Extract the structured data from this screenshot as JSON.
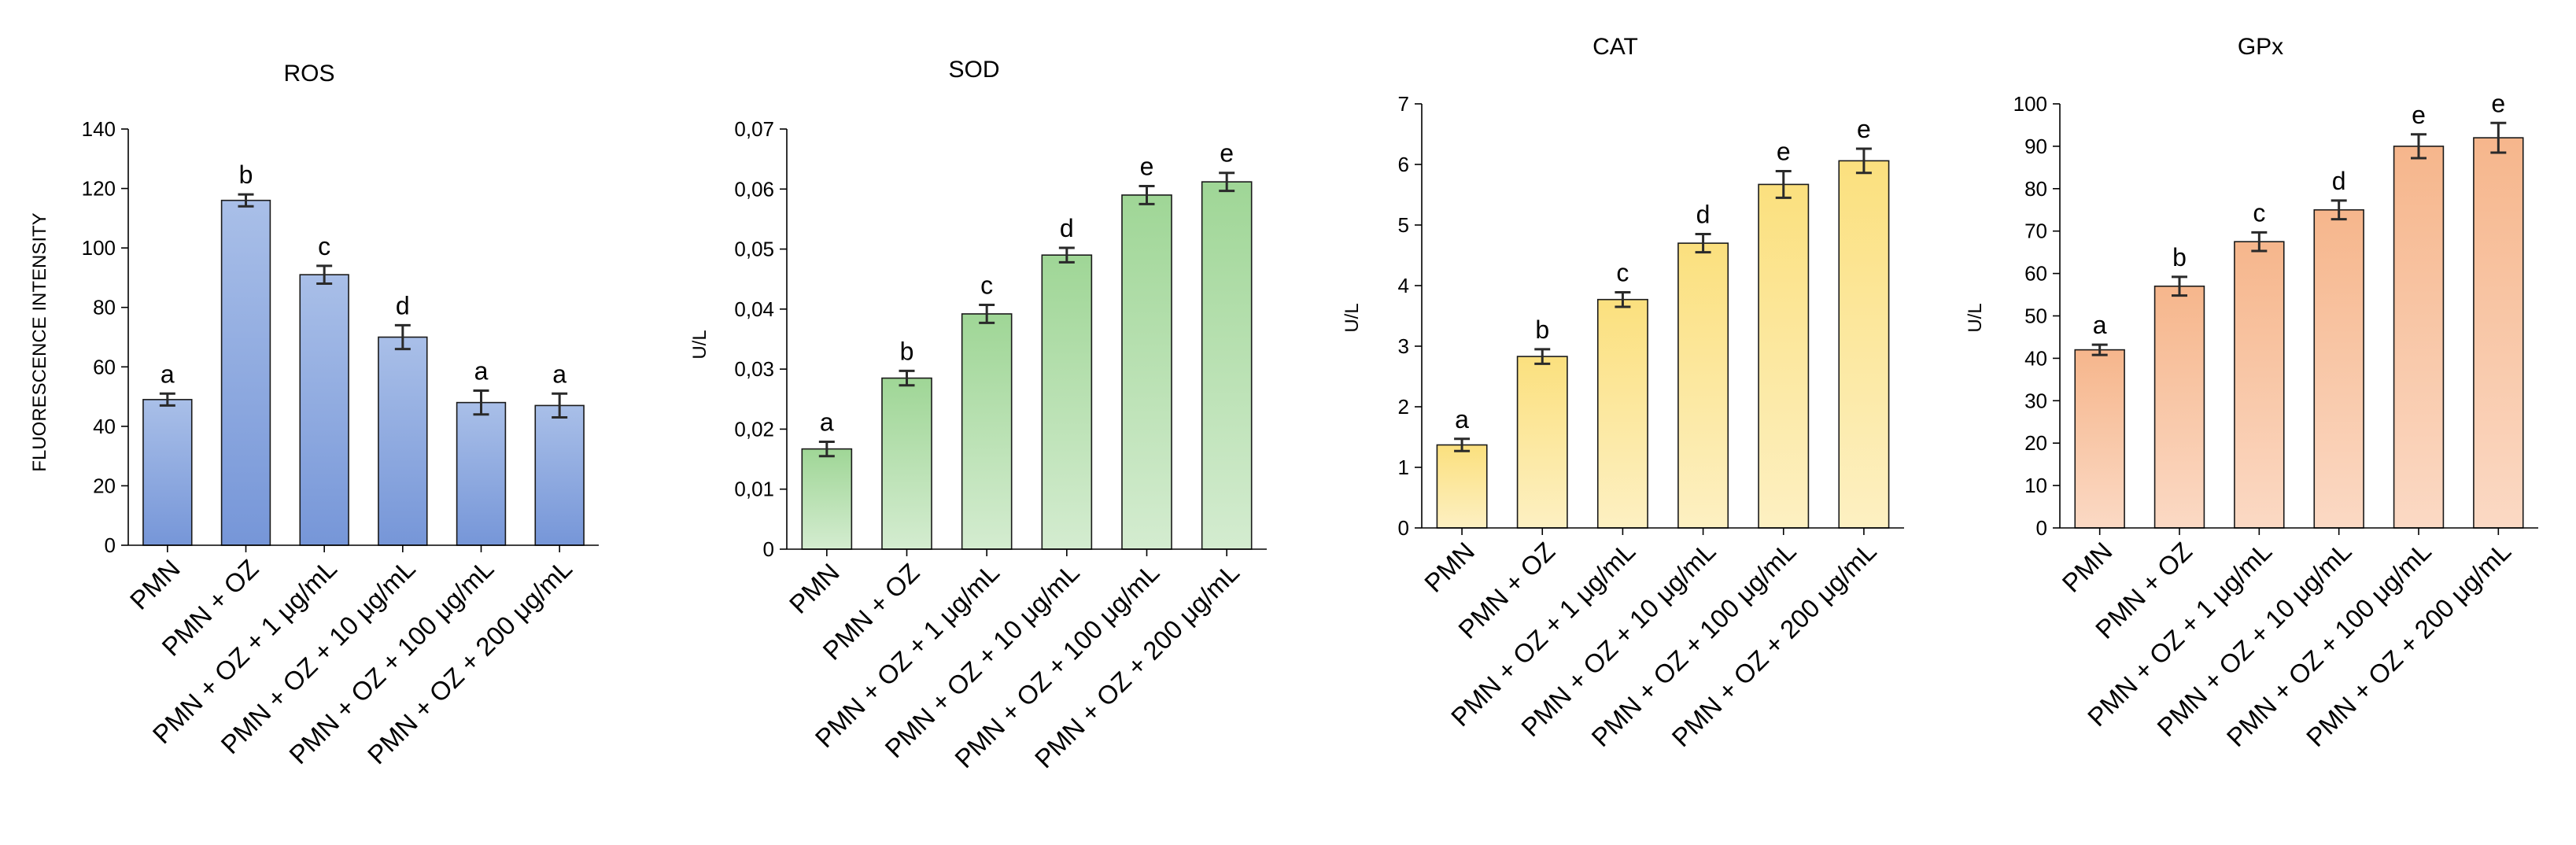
{
  "chart_data": [
    {
      "type": "bar",
      "title": "ROS",
      "ylabel": "FLUORESCENCE INTENSITY",
      "xlabel": "",
      "ylim": [
        0,
        140
      ],
      "yticks": [
        "0",
        "20",
        "40",
        "60",
        "80",
        "100",
        "120",
        "140"
      ],
      "categories": [
        "PMN",
        "PMN + OZ",
        "PMN + OZ + 1  μg/mL",
        "PMN + OZ + 10  μg/mL",
        "PMN + OZ + 100  μg/mL",
        "PMN + OZ + 200  μg/mL"
      ],
      "values": [
        49,
        116,
        91,
        70,
        48,
        47
      ],
      "errors": [
        2,
        2,
        3,
        4,
        4,
        4
      ],
      "letters": [
        "a",
        "b",
        "c",
        "d",
        "a",
        "a"
      ],
      "color": "#7f9fdc"
    },
    {
      "type": "bar",
      "title": "SOD",
      "ylabel": "U/L",
      "xlabel": "",
      "ylim": [
        0,
        0.07
      ],
      "yticks": [
        "0",
        "0,01",
        "0,02",
        "0,03",
        "0,04",
        "0,05",
        "0,06",
        "0,07"
      ],
      "categories": [
        "PMN",
        "PMN + OZ",
        "PMN + OZ + 1  μg/mL",
        "PMN + OZ + 10  μg/mL",
        "PMN + OZ + 100  μg/mL",
        "PMN + OZ + 200  μg/mL"
      ],
      "values": [
        0.0167,
        0.0285,
        0.0392,
        0.049,
        0.059,
        0.0612
      ],
      "errors": [
        0.0012,
        0.0012,
        0.0015,
        0.0012,
        0.0015,
        0.0015
      ],
      "letters": [
        "a",
        "b",
        "c",
        "d",
        "e",
        "e"
      ],
      "color": "#a9daa0"
    },
    {
      "type": "bar",
      "title": "CAT",
      "ylabel": "U/L",
      "xlabel": "",
      "ylim": [
        0,
        7
      ],
      "yticks": [
        "0",
        "1",
        "2",
        "3",
        "4",
        "5",
        "6",
        "7"
      ],
      "categories": [
        "PMN",
        "PMN + OZ",
        "PMN + OZ + 1  μg/mL",
        "PMN + OZ + 10  μg/mL",
        "PMN + OZ + 100  μg/mL",
        "PMN + OZ + 200  μg/mL"
      ],
      "values": [
        1.37,
        2.83,
        3.77,
        4.7,
        5.67,
        6.06
      ],
      "errors": [
        0.1,
        0.12,
        0.12,
        0.15,
        0.22,
        0.2
      ],
      "letters": [
        "a",
        "b",
        "c",
        "d",
        "e",
        "e"
      ],
      "color": "#fbe28c"
    },
    {
      "type": "bar",
      "title": "GPx",
      "ylabel": "U/L",
      "xlabel": "",
      "ylim": [
        0,
        100
      ],
      "yticks": [
        "0",
        "10",
        "20",
        "30",
        "40",
        "50",
        "60",
        "70",
        "80",
        "90",
        "100"
      ],
      "categories": [
        "PMN",
        "PMN + OZ",
        "PMN + OZ + 1  μg/mL",
        "PMN + OZ + 10  μg/mL",
        "PMN + OZ + 100  μg/mL",
        "PMN + OZ + 200  μg/mL"
      ],
      "values": [
        42,
        57,
        67.5,
        75,
        90,
        92
      ],
      "errors": [
        1.2,
        2.2,
        2.2,
        2.2,
        2.8,
        3.5
      ],
      "letters": [
        "a",
        "b",
        "c",
        "d",
        "e",
        "e"
      ],
      "color": "#f8bf9b"
    }
  ]
}
